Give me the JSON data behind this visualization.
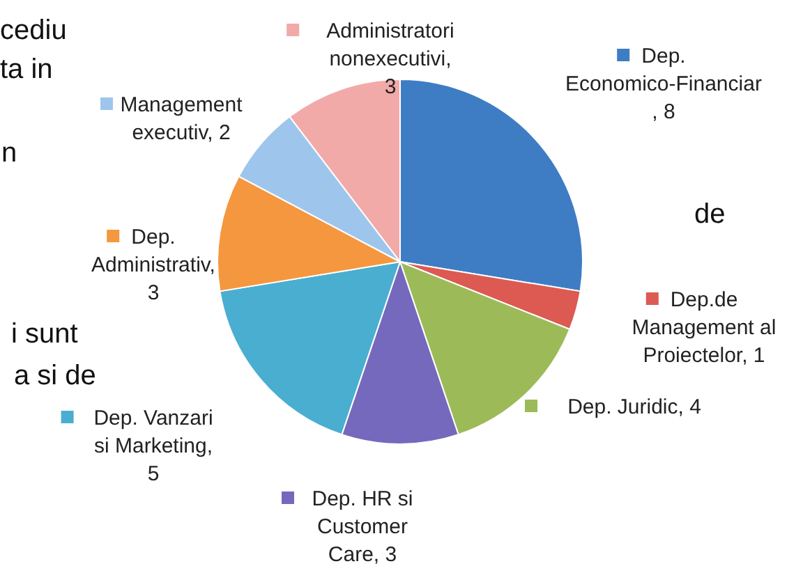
{
  "chart_data": {
    "type": "pie",
    "categories": [
      "Dep. Economico-Financiar ",
      "Dep.de Management al Proiectelor",
      "Dep. Juridic",
      "Dep. HR si Customer Care",
      "Dep. Vanzari si Marketing",
      "Dep. Administrativ",
      "Management executiv",
      "Administratori nonexecutivi"
    ],
    "values": [
      8,
      1,
      4,
      3,
      5,
      3,
      2,
      3
    ],
    "colors": [
      "#3e7dc4",
      "#dc5a52",
      "#9cbb58",
      "#7569bd",
      "#4aaed0",
      "#f5973f",
      "#9ec6ec",
      "#f2aaa8"
    ],
    "value_labels": [
      " , 8",
      ", 1",
      ", 4",
      ", 3",
      ", 5",
      ", 3",
      ", 2",
      ", 3"
    ],
    "legend": "right",
    "annotations": [
      "cediu",
      "ta in",
      "n",
      "de",
      "i sunt",
      "a si de"
    ]
  }
}
